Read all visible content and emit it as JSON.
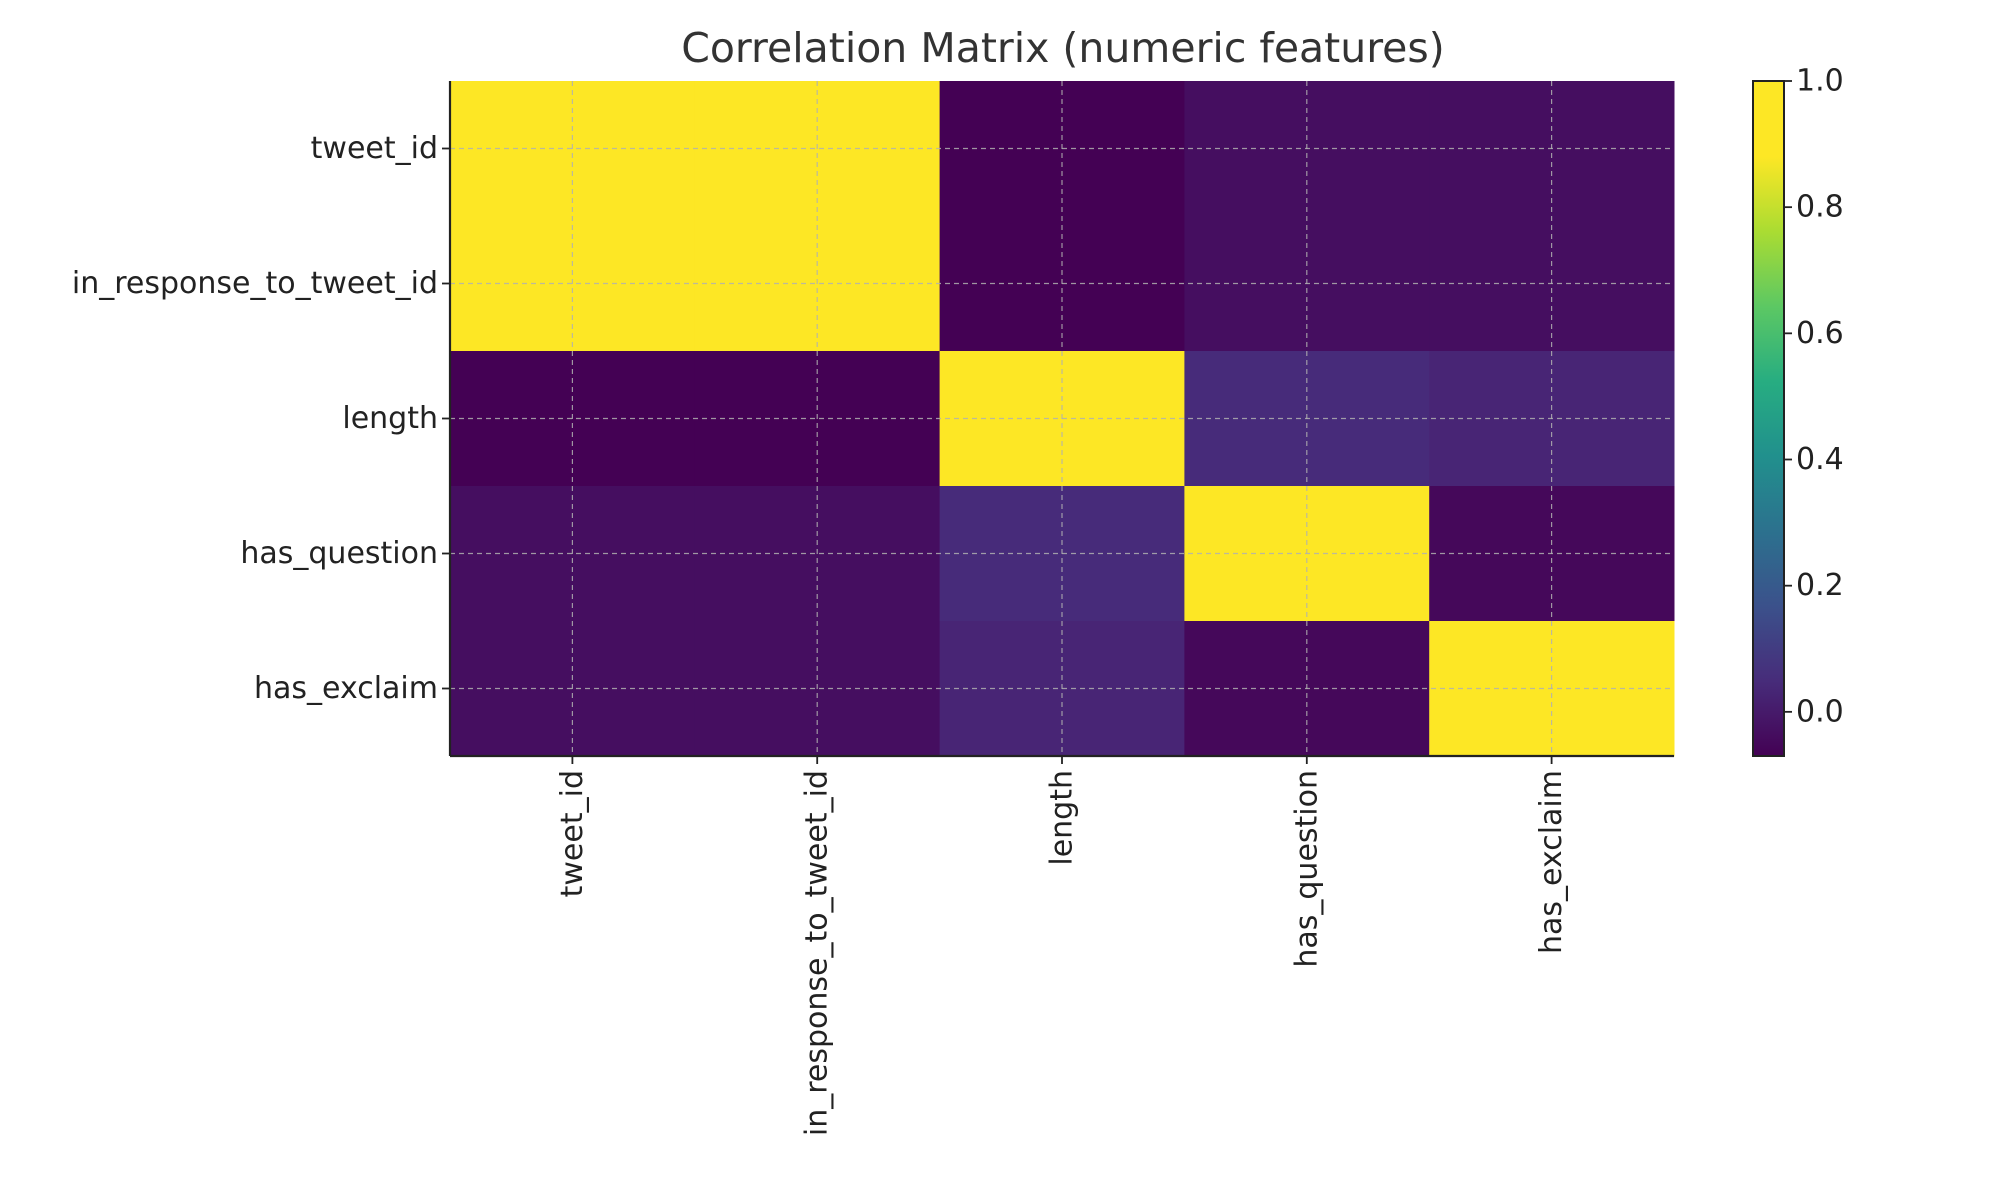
{
  "chart_data": {
    "type": "heatmap",
    "title": "Correlation Matrix (numeric features)",
    "xlabel": "",
    "ylabel": "",
    "x_categories": [
      "tweet_id",
      "in_response_to_tweet_id",
      "length",
      "has_question",
      "has_exclaim"
    ],
    "y_categories": [
      "tweet_id",
      "in_response_to_tweet_id",
      "length",
      "has_question",
      "has_exclaim"
    ],
    "values": [
      [
        1.0,
        1.0,
        -0.07,
        -0.03,
        -0.03
      ],
      [
        1.0,
        1.0,
        -0.07,
        -0.03,
        -0.03
      ],
      [
        -0.07,
        -0.07,
        1.0,
        0.06,
        0.04
      ],
      [
        -0.03,
        -0.03,
        0.06,
        1.0,
        -0.05
      ],
      [
        -0.03,
        -0.03,
        0.04,
        -0.05,
        1.0
      ]
    ],
    "colormap": "viridis",
    "colorbar": {
      "range": [
        -0.07,
        1.0
      ],
      "ticks": [
        1.0,
        0.8,
        0.6,
        0.4,
        0.2,
        0.0
      ],
      "tick_labels": [
        "1.0",
        "0.8",
        "0.6",
        "0.4",
        "0.2",
        "0.0"
      ]
    },
    "grid": true,
    "gridstyle": "dashed"
  }
}
